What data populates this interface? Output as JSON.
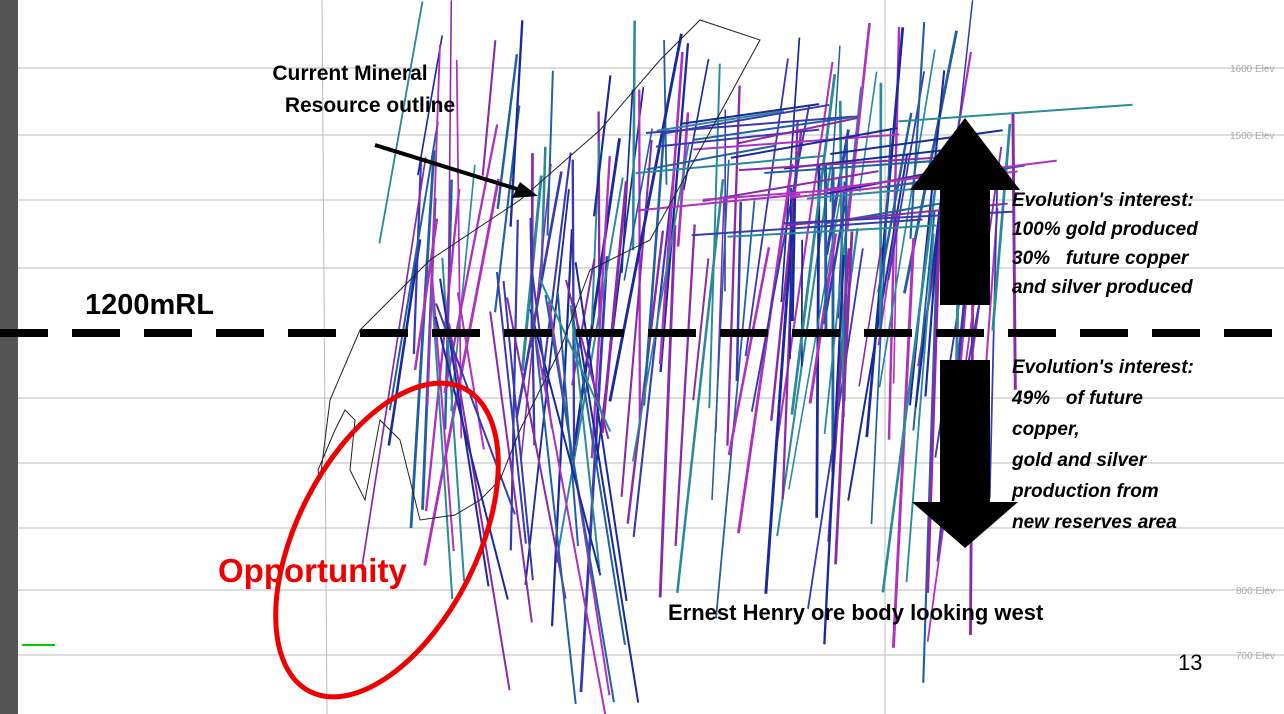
{
  "slide": {
    "callout": {
      "lines": [
        "Current Mineral",
        "Resource outline"
      ]
    },
    "level_label": "1200mRL",
    "upper_interest": {
      "lines": [
        "Evolution's interest:",
        "100% gold produced",
        "30%   future copper",
        "and silver produced"
      ]
    },
    "lower_interest": {
      "lines": [
        "Evolution's interest:",
        "49%   of future",
        "copper,",
        "gold and silver",
        "production from",
        "new reserves area"
      ]
    },
    "opportunity": "Opportunity",
    "caption": "Ernest Henry ore body looking west",
    "page_number": "13",
    "elevation_labels": [
      "1600 Elev",
      "1500 Elev",
      "800 Elev",
      "700 Elev"
    ]
  }
}
